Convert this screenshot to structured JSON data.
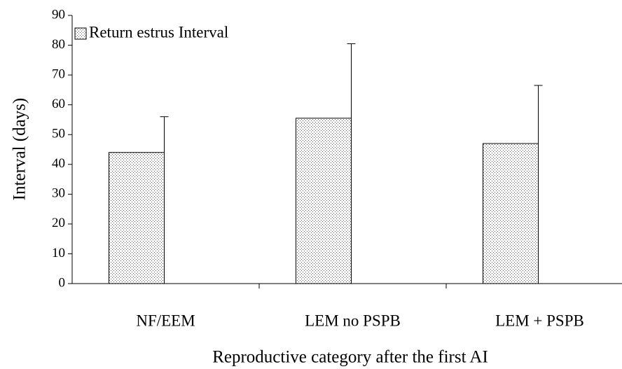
{
  "chart_data": {
    "type": "bar",
    "xlabel": "Reproductive category after the first AI",
    "ylabel": "Interval (days)",
    "categories": [
      "NF/EEM",
      "LEM no PSPB",
      "LEM + PSPB"
    ],
    "series": [
      {
        "name": "Return estrus Interval",
        "color": "#000000",
        "values": [
          44,
          55.5,
          47
        ],
        "errors": [
          12,
          25,
          19.5
        ]
      }
    ],
    "ylim": [
      0,
      90
    ],
    "yticks": [
      0,
      10,
      20,
      30,
      40,
      50,
      60,
      70,
      80,
      90
    ],
    "legend": "upper left",
    "grid": false
  }
}
